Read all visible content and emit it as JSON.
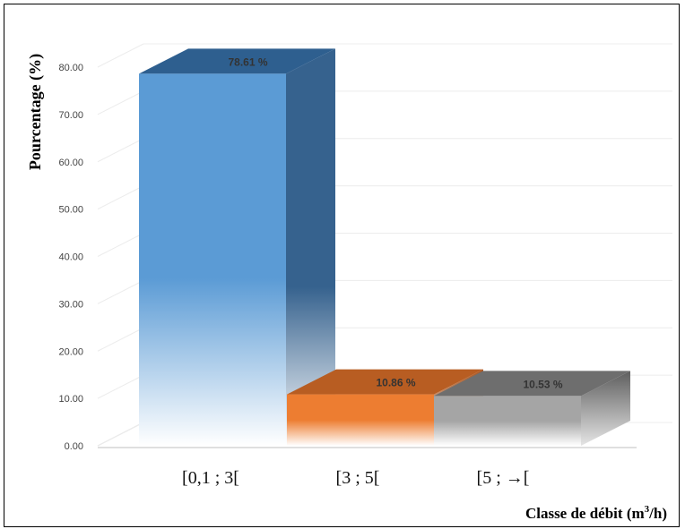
{
  "chart_data": {
    "type": "bar",
    "style": "3d",
    "categories": [
      "[0,1 ; 3[",
      "[3 ; 5[",
      "[5 ; →["
    ],
    "values": [
      78.61,
      10.86,
      10.53
    ],
    "data_labels": [
      "78.61 %",
      "10.86 %",
      "10.53 %"
    ],
    "ylabel": "Pourcentage (%)",
    "xlabel_main": "Classe de débit (m",
    "xlabel_sup": "3",
    "xlabel_end": "/h)",
    "ylim": [
      0,
      80
    ],
    "yticks": [
      "0.00",
      "10.00",
      "20.00",
      "30.00",
      "40.00",
      "50.00",
      "60.00",
      "70.00",
      "80.00"
    ],
    "ytick_values": [
      0,
      10,
      20,
      30,
      40,
      50,
      60,
      70,
      80
    ],
    "grid": true,
    "colors": [
      {
        "front": "#5b9bd5",
        "top": "#2e5f8f",
        "side": "#36628e"
      },
      {
        "front": "#ed7d31",
        "top": "#b85d22",
        "side": "#a85520"
      },
      {
        "front": "#a5a5a5",
        "top": "#6e6e6e",
        "side": "#5e5e5e"
      }
    ]
  }
}
